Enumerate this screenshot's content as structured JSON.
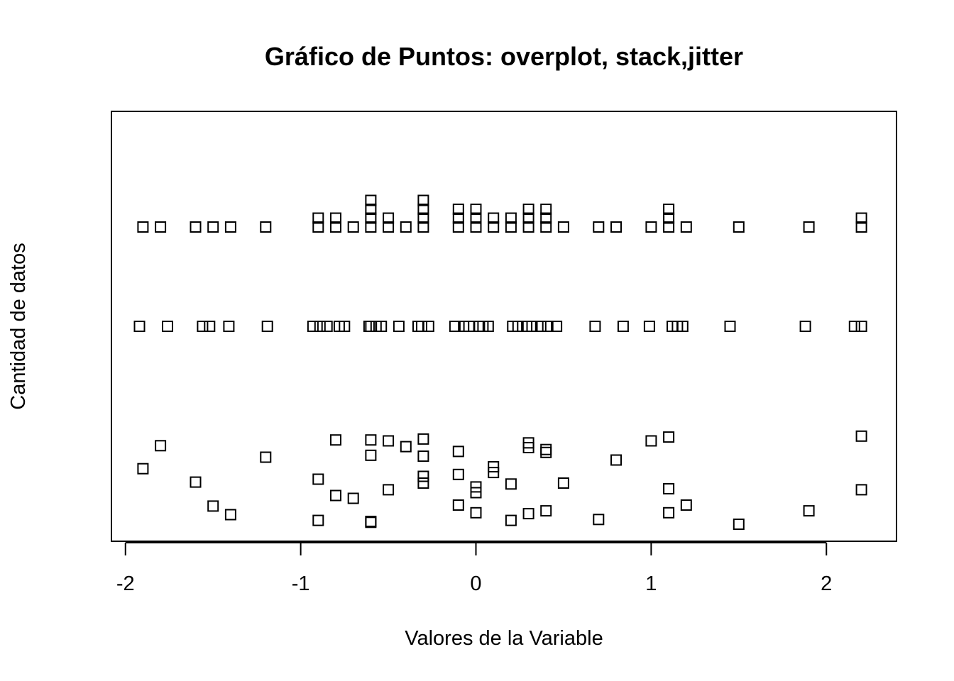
{
  "chart_data": {
    "type": "scatter",
    "title": "Gráfico de Puntos: overplot, stack,jitter",
    "xlabel": "Valores de la Variable",
    "ylabel": "Cantidad de datos",
    "xlim": [
      -2.08,
      2.4
    ],
    "x_ticks": [
      "-2",
      "-1",
      "0",
      "1",
      "2"
    ],
    "x_tick_values": [
      -2,
      -1,
      0,
      1,
      2
    ],
    "marker": "open-square",
    "color": "#000000",
    "grid": false,
    "legend": "none",
    "stack": {
      "x": [
        -1.9,
        -1.8,
        -1.6,
        -1.5,
        -1.4,
        -1.2,
        -0.9,
        -0.8,
        -0.7,
        -0.6,
        -0.5,
        -0.4,
        -0.3,
        -0.1,
        0.0,
        0.1,
        0.2,
        0.3,
        0.4,
        0.5,
        0.7,
        0.8,
        1.0,
        1.1,
        1.2,
        1.5,
        1.9,
        2.2
      ],
      "count": [
        1,
        1,
        1,
        1,
        1,
        1,
        2,
        2,
        1,
        4,
        2,
        1,
        4,
        3,
        3,
        2,
        2,
        3,
        3,
        1,
        1,
        1,
        1,
        3,
        1,
        1,
        1,
        2
      ]
    },
    "jitter": {
      "x": [
        -1.92,
        -1.76,
        -1.56,
        -1.52,
        -1.41,
        -1.19,
        -0.93,
        -0.89,
        -0.85,
        -0.78,
        -0.75,
        -0.61,
        -0.6,
        -0.57,
        -0.54,
        -0.44,
        -0.33,
        -0.31,
        -0.27,
        -0.12,
        -0.07,
        -0.04,
        0.02,
        0.04,
        0.07,
        0.21,
        0.24,
        0.29,
        0.32,
        0.37,
        0.41,
        0.46,
        0.68,
        0.84,
        0.99,
        1.12,
        1.15,
        1.18,
        1.45,
        1.88,
        2.16,
        2.2
      ],
      "y": [
        0,
        0,
        0,
        0,
        0,
        0,
        0,
        0,
        0,
        0,
        0,
        0,
        0,
        0,
        0,
        0,
        0,
        0,
        0,
        0,
        0,
        0,
        0,
        0,
        0,
        0,
        0,
        0,
        0,
        0,
        0,
        0,
        0,
        0,
        0,
        0,
        0,
        0,
        0,
        0,
        0,
        0
      ]
    },
    "overplot_jittered": {
      "x": [
        -1.9,
        -1.8,
        -1.6,
        -1.5,
        -1.4,
        -1.2,
        -0.9,
        -0.9,
        -0.8,
        -0.8,
        -0.7,
        -0.6,
        -0.6,
        -0.6,
        -0.6,
        -0.5,
        -0.5,
        -0.4,
        -0.3,
        -0.3,
        -0.3,
        -0.3,
        -0.1,
        -0.1,
        -0.1,
        0.0,
        0.0,
        0.0,
        0.1,
        0.1,
        0.2,
        0.2,
        0.3,
        0.3,
        0.3,
        0.4,
        0.4,
        0.4,
        0.5,
        0.7,
        0.8,
        1.0,
        1.1,
        1.1,
        1.1,
        1.2,
        1.5,
        1.9,
        2.2,
        2.2
      ],
      "y": [
        0.58,
        0.82,
        0.44,
        0.19,
        0.1,
        0.7,
        0.47,
        0.04,
        0.88,
        0.3,
        0.27,
        0.88,
        0.72,
        0.03,
        0.02,
        0.87,
        0.36,
        0.81,
        0.89,
        0.71,
        0.5,
        0.43,
        0.76,
        0.52,
        0.2,
        0.39,
        0.33,
        0.12,
        0.6,
        0.54,
        0.42,
        0.04,
        0.85,
        0.8,
        0.11,
        0.78,
        0.75,
        0.14,
        0.43,
        0.05,
        0.67,
        0.87,
        0.91,
        0.37,
        0.12,
        0.2,
        0.0,
        0.14,
        0.92,
        0.36
      ]
    }
  }
}
